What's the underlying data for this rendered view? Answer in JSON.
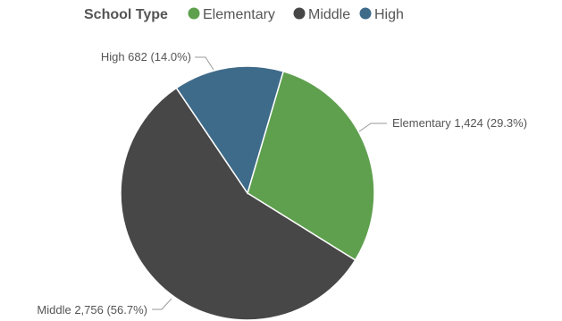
{
  "chart_data": {
    "type": "pie",
    "legend": {
      "title": "School Type",
      "placement": "top-left"
    },
    "slices": [
      {
        "name": "Elementary",
        "value": 1424,
        "value_label": "1,424",
        "percent_label": "29.3%",
        "color": "#5fa04e"
      },
      {
        "name": "Middle",
        "value": 2756,
        "value_label": "2,756",
        "percent_label": "56.7%",
        "color": "#474747"
      },
      {
        "name": "High",
        "value": 682,
        "value_label": "682",
        "percent_label": "14.0%",
        "color": "#3f6b8a"
      }
    ]
  }
}
